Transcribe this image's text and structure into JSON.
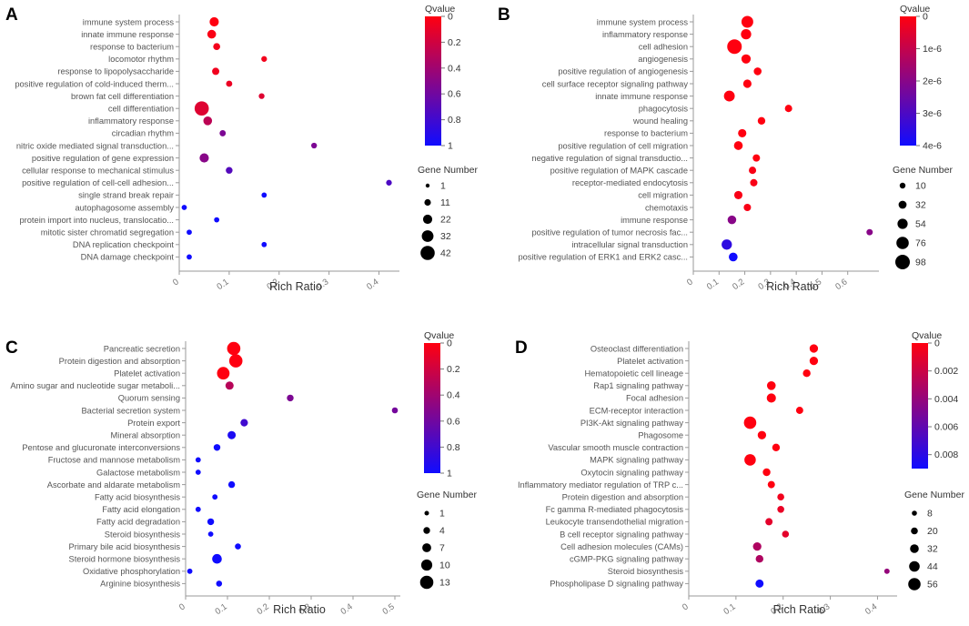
{
  "chart_data": [
    {
      "type": "scatter",
      "panel_label": "A",
      "xlabel": "Rich Ratio",
      "xlim": [
        0,
        0.43
      ],
      "x_ticks": [
        "0",
        "0.1",
        "0.2",
        "0.3",
        "0.4"
      ],
      "x_tick_values": [
        0,
        0.1,
        0.2,
        0.3,
        0.4
      ],
      "color_title": "Qvalue",
      "color_ticks": [
        "0",
        "0.2",
        "0.4",
        "0.6",
        "0.8",
        "1"
      ],
      "color_tick_values": [
        0,
        0.2,
        0.4,
        0.6,
        0.8,
        1
      ],
      "color_range": [
        0,
        1
      ],
      "size_title": "Gene Number",
      "size_legend_labels": [
        "1",
        "11",
        "22",
        "32",
        "42"
      ],
      "size_legend_values": [
        1,
        11,
        22,
        32,
        42
      ],
      "size_range": [
        1,
        42
      ],
      "categories": [
        "immune system process",
        "innate immune response",
        "response to bacterium",
        "locomotor rhythm",
        "response to lipopolysaccharide",
        "positive regulation of cold-induced therm...",
        "brown fat cell differentiation",
        "cell differentiation",
        "inflammatory response",
        "circadian rhythm",
        "nitric oxide mediated signal transduction...",
        "positive regulation of gene expression",
        "cellular response to mechanical stimulus",
        "positive regulation of cell-cell adhesion...",
        "single strand break repair",
        "autophagosome assembly",
        "protein import into nucleus, translocatio...",
        "mitotic sister chromatid segregation",
        "DNA replication checkpoint",
        "DNA damage checkpoint"
      ],
      "x": [
        0.07,
        0.065,
        0.075,
        0.17,
        0.073,
        0.1,
        0.165,
        0.045,
        0.057,
        0.087,
        0.27,
        0.05,
        0.1,
        0.42,
        0.17,
        0.01,
        0.075,
        0.02,
        0.17,
        0.02
      ],
      "qvalue": [
        0.0,
        0.02,
        0.05,
        0.05,
        0.06,
        0.08,
        0.14,
        0.14,
        0.28,
        0.55,
        0.55,
        0.5,
        0.72,
        0.75,
        1.0,
        1.0,
        1.0,
        1.0,
        1.0,
        1.0
      ],
      "gene_number": [
        22,
        20,
        13,
        8,
        14,
        10,
        8,
        42,
        20,
        10,
        8,
        22,
        12,
        8,
        6,
        6,
        6,
        6,
        6,
        6
      ]
    },
    {
      "type": "scatter",
      "panel_label": "B",
      "xlabel": "Rich Ratio",
      "xlim": [
        0,
        0.7
      ],
      "x_ticks": [
        "0",
        "0.1",
        "0.2",
        "0.3",
        "0.4",
        "0.5",
        "0.6"
      ],
      "x_tick_values": [
        0,
        0.1,
        0.2,
        0.3,
        0.4,
        0.5,
        0.6
      ],
      "color_title": "Qvalue",
      "color_ticks": [
        "0",
        "1e-6",
        "2e-6",
        "3e-6",
        "4e-6"
      ],
      "color_tick_values": [
        0,
        1e-06,
        2e-06,
        3e-06,
        4e-06
      ],
      "color_range": [
        0,
        4e-06
      ],
      "size_title": "Gene Number",
      "size_legend_labels": [
        "10",
        "32",
        "54",
        "76",
        "98"
      ],
      "size_legend_values": [
        10,
        32,
        54,
        76,
        98
      ],
      "size_range": [
        10,
        98
      ],
      "categories": [
        "immune system process",
        "inflammatory response",
        "cell adhesion",
        "angiogenesis",
        "positive regulation of angiogenesis",
        "cell surface receptor signaling pathway",
        "innate immune response",
        "phagocytosis",
        "wound healing",
        "response to bacterium",
        "positive regulation of cell migration",
        "negative regulation of signal transductio...",
        "positive regulation of MAPK cascade",
        "receptor-mediated endocytosis",
        "cell migration",
        "chemotaxis",
        "immune response",
        "positive regulation of tumor necrosis fac...",
        "intracellular signal transduction",
        "positive regulation of ERK1 and ERK2 casc..."
      ],
      "x": [
        0.21,
        0.205,
        0.16,
        0.205,
        0.25,
        0.21,
        0.14,
        0.37,
        0.265,
        0.19,
        0.175,
        0.245,
        0.23,
        0.235,
        0.175,
        0.21,
        0.15,
        0.685,
        0.13,
        0.155
      ],
      "qvalue": [
        0.0,
        0.0,
        0.0,
        0.0,
        0.0,
        0.0,
        0.0,
        0.0,
        0.0,
        0.0,
        0.0,
        0.0,
        1e-07,
        1e-07,
        1e-07,
        1e-07,
        2e-06,
        2e-06,
        3.5e-06,
        4e-06
      ],
      "gene_number": [
        70,
        55,
        98,
        45,
        30,
        35,
        60,
        25,
        28,
        35,
        40,
        25,
        25,
        25,
        35,
        25,
        38,
        15,
        55,
        40
      ]
    },
    {
      "type": "scatter",
      "panel_label": "C",
      "xlabel": "Rich Ratio",
      "xlim": [
        0,
        0.5
      ],
      "x_ticks": [
        "0",
        "0.1",
        "0.2",
        "0.3",
        "0.4",
        "0.5"
      ],
      "x_tick_values": [
        0,
        0.1,
        0.2,
        0.3,
        0.4,
        0.5
      ],
      "color_title": "Qvalue",
      "color_ticks": [
        "0",
        "0.2",
        "0.4",
        "0.6",
        "0.8",
        "1"
      ],
      "color_tick_values": [
        0,
        0.2,
        0.4,
        0.6,
        0.8,
        1
      ],
      "color_range": [
        0,
        1
      ],
      "size_title": "Gene Number",
      "size_legend_labels": [
        "1",
        "4",
        "7",
        "10",
        "13"
      ],
      "size_legend_values": [
        1,
        4,
        7,
        10,
        13
      ],
      "size_range": [
        1,
        13
      ],
      "categories": [
        "Pancreatic secretion",
        "Protein digestion and absorption",
        "Platelet activation",
        "Amino sugar and nucleotide sugar metaboli...",
        "Quorum sensing",
        "Bacterial secretion system",
        "Protein export",
        "Mineral absorption",
        "Pentose and glucuronate interconversions",
        "Fructose and mannose metabolism",
        "Galactose metabolism",
        "Ascorbate and aldarate metabolism",
        "Fatty acid biosynthesis",
        "Fatty acid elongation",
        "Fatty acid degradation",
        "Steroid biosynthesis",
        "Primary bile acid biosynthesis",
        "Steroid hormone biosynthesis",
        "Oxidative phosphorylation",
        "Arginine biosynthesis"
      ],
      "x": [
        0.115,
        0.12,
        0.09,
        0.105,
        0.25,
        0.5,
        0.14,
        0.11,
        0.075,
        0.03,
        0.03,
        0.11,
        0.07,
        0.03,
        0.06,
        0.06,
        0.125,
        0.075,
        0.01,
        0.08
      ],
      "qvalue": [
        0.0,
        0.0,
        0.0,
        0.3,
        0.55,
        0.58,
        0.8,
        0.95,
        1.0,
        1.0,
        1.0,
        1.0,
        1.0,
        1.0,
        1.0,
        1.0,
        1.0,
        1.0,
        1.0,
        1.0
      ],
      "gene_number": [
        13,
        13,
        12,
        6,
        4,
        3,
        5,
        6,
        4,
        2,
        2,
        4,
        2,
        2,
        4,
        2,
        3,
        8,
        2,
        3
      ]
    },
    {
      "type": "scatter",
      "panel_label": "D",
      "xlabel": "Rich Ratio",
      "xlim": [
        0,
        0.43
      ],
      "x_ticks": [
        "0",
        "0.1",
        "0.2",
        "0.3",
        "0.4"
      ],
      "x_tick_values": [
        0,
        0.1,
        0.2,
        0.3,
        0.4
      ],
      "color_title": "Qvalue",
      "color_ticks": [
        "0",
        "0.002",
        "0.004",
        "0.006",
        "0.008"
      ],
      "color_tick_values": [
        0,
        0.002,
        0.004,
        0.006,
        0.008
      ],
      "color_range": [
        0,
        0.009
      ],
      "size_title": "Gene Number",
      "size_legend_labels": [
        "8",
        "20",
        "32",
        "44",
        "56"
      ],
      "size_legend_values": [
        8,
        20,
        32,
        44,
        56
      ],
      "size_range": [
        8,
        56
      ],
      "categories": [
        "Osteoclast differentiation",
        "Platelet activation",
        "Hematopoietic cell lineage",
        "Rap1 signaling pathway",
        "Focal adhesion",
        "ECM-receptor interaction",
        "PI3K-Akt signaling pathway",
        "Phagosome",
        "Vascular smooth muscle contraction",
        "MAPK signaling pathway",
        "Oxytocin signaling pathway",
        "Inflammatory mediator regulation of TRP c...",
        "Protein digestion and absorption",
        "Fc gamma R-mediated phagocytosis",
        "Leukocyte transendothelial migration",
        "B cell receptor signaling pathway",
        "Cell adhesion molecules (CAMs)",
        "cGMP-PKG signaling pathway",
        "Steroid biosynthesis",
        "Phospholipase D signaling pathway"
      ],
      "x": [
        0.265,
        0.265,
        0.25,
        0.175,
        0.175,
        0.235,
        0.13,
        0.155,
        0.185,
        0.13,
        0.165,
        0.175,
        0.195,
        0.195,
        0.17,
        0.205,
        0.145,
        0.15,
        0.42,
        0.15
      ],
      "qvalue": [
        0.0,
        0.0,
        0.0,
        0.0,
        0.0,
        0.0,
        0.0,
        0.0,
        0.0,
        0.0,
        0.0,
        0.0,
        0.0005,
        0.0008,
        0.001,
        0.001,
        0.003,
        0.003,
        0.004,
        0.009
      ],
      "gene_number": [
        30,
        30,
        25,
        32,
        35,
        22,
        56,
        30,
        25,
        50,
        25,
        22,
        20,
        20,
        22,
        20,
        30,
        25,
        10,
        28
      ]
    }
  ]
}
